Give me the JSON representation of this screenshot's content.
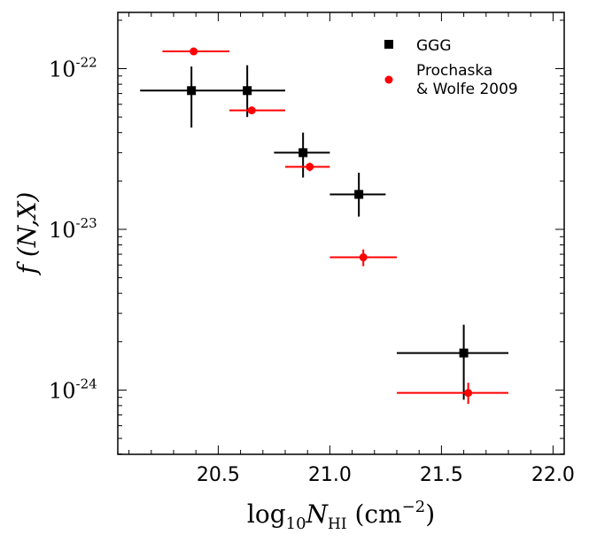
{
  "chart_data": {
    "type": "scatter",
    "title": "",
    "xlabel": "log10 N_HI (cm^-2)",
    "ylabel": "f (N, X)",
    "xlabel_parts": {
      "main": "log",
      "sub1": "10",
      "var": "N",
      "sub2": "HI",
      "unit_open": " (cm",
      "unit_exp": "−2",
      "unit_close": ")"
    },
    "ylabel_text": "f (N,X)",
    "xlim": [
      20.05,
      22.05
    ],
    "ylim_log10": [
      -24.4,
      -21.65
    ],
    "yscale": "log",
    "x_ticks": [
      20.5,
      21.0,
      21.5,
      22.0
    ],
    "x_tick_labels": [
      "20.5",
      "21.0",
      "21.5",
      "22.0"
    ],
    "y_ticks_log10": [
      -24,
      -23,
      -22
    ],
    "y_tick_labels": [
      {
        "base": "10",
        "exp": "-24"
      },
      {
        "base": "10",
        "exp": "-23"
      },
      {
        "base": "10",
        "exp": "-22"
      }
    ],
    "legend_position": "top-right",
    "series": [
      {
        "name": "GGG",
        "color": "#000000",
        "marker": "square",
        "points": [
          {
            "x": 20.38,
            "y": 7.3e-23,
            "xerr_low": 20.15,
            "xerr_high": 20.55,
            "yerr_low": 4.3e-23,
            "yerr_high": 1.03e-22
          },
          {
            "x": 20.63,
            "y": 7.3e-23,
            "xerr_low": 20.55,
            "xerr_high": 20.8,
            "yerr_low": 5e-23,
            "yerr_high": 1.05e-22
          },
          {
            "x": 20.88,
            "y": 3e-23,
            "xerr_low": 20.75,
            "xerr_high": 21.0,
            "yerr_low": 2.1e-23,
            "yerr_high": 4e-23
          },
          {
            "x": 21.13,
            "y": 1.65e-23,
            "xerr_low": 21.0,
            "xerr_high": 21.25,
            "yerr_low": 1.2e-23,
            "yerr_high": 2.25e-23
          },
          {
            "x": 21.6,
            "y": 1.7e-24,
            "xerr_low": 21.3,
            "xerr_high": 21.8,
            "yerr_low": 8.7e-25,
            "yerr_high": 2.55e-24
          }
        ]
      },
      {
        "name": "Prochaska & Wolfe 2009",
        "legend_lines": [
          "Prochaska",
          "& Wolfe 2009"
        ],
        "color": "#ff0000",
        "marker": "circle",
        "points": [
          {
            "x": 20.39,
            "y": 1.28e-22,
            "xerr_low": 20.25,
            "xerr_high": 20.55,
            "yerr_low": 1.24e-22,
            "yerr_high": 1.32e-22
          },
          {
            "x": 20.65,
            "y": 5.5e-23,
            "xerr_low": 20.55,
            "xerr_high": 20.8,
            "yerr_low": 5.3e-23,
            "yerr_high": 5.7e-23
          },
          {
            "x": 20.91,
            "y": 2.45e-23,
            "xerr_low": 20.8,
            "xerr_high": 21.0,
            "yerr_low": 2.3e-23,
            "yerr_high": 2.6e-23
          },
          {
            "x": 21.15,
            "y": 6.7e-24,
            "xerr_low": 21.0,
            "xerr_high": 21.3,
            "yerr_low": 5.9e-24,
            "yerr_high": 7.5e-24
          },
          {
            "x": 21.62,
            "y": 9.6e-25,
            "xerr_low": 21.3,
            "xerr_high": 21.8,
            "yerr_low": 8.2e-25,
            "yerr_high": 1.11e-24
          }
        ]
      }
    ]
  }
}
